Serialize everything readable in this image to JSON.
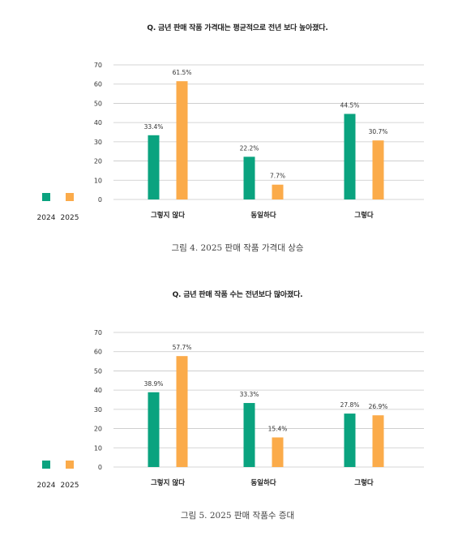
{
  "colors": {
    "y2024": "#0aa37f",
    "y2025": "#fbab4a",
    "grid": "#c8c8c8"
  },
  "chart_data": [
    {
      "type": "bar",
      "title": "Q. 금년 판매 작품 가격대는 평균적으로 전년 보다 높아졌다.",
      "caption": "그림 4. 2025 판매 작품 가격대 상승",
      "categories": [
        "그렇지 않다",
        "동일하다",
        "그렇다"
      ],
      "series": [
        {
          "name": "2024",
          "values": [
            33.4,
            22.2,
            44.5
          ],
          "labels": [
            "33.4%",
            "22.2%",
            "44.5%"
          ]
        },
        {
          "name": "2025",
          "values": [
            61.5,
            7.7,
            30.7
          ],
          "labels": [
            "61.5%",
            "7.7%",
            "30.7%"
          ]
        }
      ],
      "ylim": [
        0,
        70
      ],
      "yticks": [
        "0",
        "10",
        "20",
        "30",
        "40",
        "50",
        "60",
        "70"
      ],
      "grid": true,
      "legend": "left"
    },
    {
      "type": "bar",
      "title": "Q. 금년 판매 작품 수는 전년보다 많아졌다.",
      "caption": "그림 5. 2025 판매 작품수 증대",
      "categories": [
        "그렇지 않다",
        "동일하다",
        "그렇다"
      ],
      "series": [
        {
          "name": "2024",
          "values": [
            38.9,
            33.3,
            27.8
          ],
          "labels": [
            "38.9%",
            "33.3%",
            "27.8%"
          ]
        },
        {
          "name": "2025",
          "values": [
            57.7,
            15.4,
            26.9
          ],
          "labels": [
            "57.7%",
            "15.4%",
            "26.9%"
          ]
        }
      ],
      "ylim": [
        0,
        70
      ],
      "yticks": [
        "0",
        "10",
        "20",
        "30",
        "40",
        "50",
        "60",
        "70"
      ],
      "grid": true,
      "legend": "left"
    }
  ]
}
